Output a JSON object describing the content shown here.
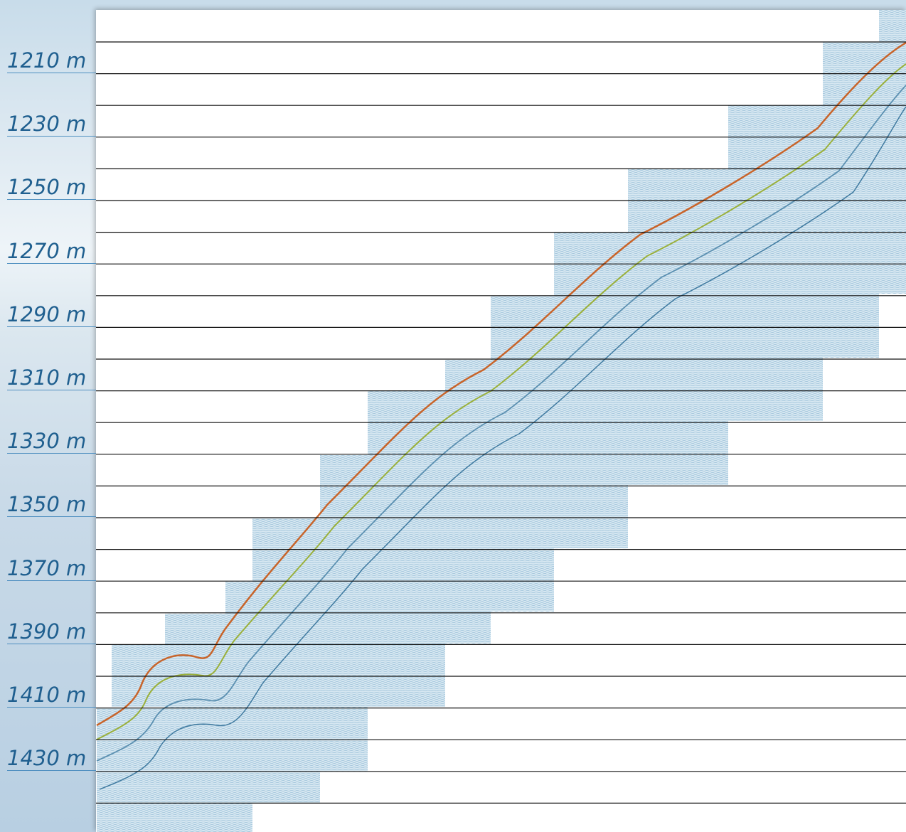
{
  "depth_labels": [
    "1210 m",
    "1230 m",
    "1250 m",
    "1270 m",
    "1290 m",
    "1310 m",
    "1330 m",
    "1350 m",
    "1370 m",
    "1390 m",
    "1410 m",
    "1430 m"
  ]
}
